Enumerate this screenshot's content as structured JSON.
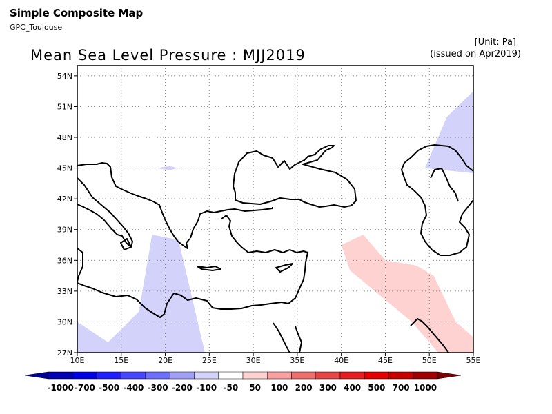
{
  "header": {
    "title": "Simple Composite Map",
    "subtitle": "GPC_Toulouse",
    "unit": "[Unit: Pa]",
    "issued": "(issued on Apr2019)"
  },
  "map": {
    "title": "Mean Sea Level Pressure : MJJ2019",
    "lon_range": [
      10,
      55
    ],
    "lat_range": [
      27,
      55
    ],
    "x_ticks": [
      "10E",
      "15E",
      "20E",
      "25E",
      "30E",
      "35E",
      "40E",
      "45E",
      "50E",
      "55E"
    ],
    "y_ticks": [
      "27N",
      "30N",
      "33N",
      "36N",
      "39N",
      "42N",
      "45N",
      "48N",
      "51N",
      "54N"
    ],
    "grid": true
  },
  "colorbar": {
    "labels": [
      "-1000",
      "-700",
      "-500",
      "-400",
      "-300",
      "-200",
      "-100",
      "-50",
      "50",
      "100",
      "200",
      "300",
      "400",
      "500",
      "700",
      "1000"
    ],
    "colors": [
      "#0000b4",
      "#0000e6",
      "#1e1eff",
      "#4646ff",
      "#6e6eff",
      "#a0a0f8",
      "#d2d2fa",
      "#ffffff",
      "#ffd2d2",
      "#faa0a0",
      "#f06e6e",
      "#e64646",
      "#e61e1e",
      "#e60000",
      "#c80000",
      "#a00000"
    ],
    "min_arrow": "#000096",
    "max_arrow": "#780000"
  },
  "chart_data": {
    "type": "heatmap",
    "title": "Mean Sea Level Pressure : MJJ2019",
    "unit": "Pa",
    "xlabel": "",
    "ylabel": "",
    "anomaly_regions": [
      {
        "category": "-100 to -50",
        "color": "#d2d2fa",
        "lon": [
          10.0,
          13.5,
          17.0,
          18.5,
          21.5,
          24.5,
          24.5,
          10.0
        ],
        "lat": [
          30.0,
          28.0,
          31.0,
          38.5,
          38.0,
          27.0,
          27.0,
          27.0
        ]
      },
      {
        "category": "-100 to -50",
        "color": "#d2d2fa",
        "lon": [
          49.5,
          52.0,
          55.0,
          55.0,
          49.5
        ],
        "lat": [
          45.0,
          50.0,
          52.5,
          44.5,
          45.0
        ]
      },
      {
        "category": "-100 to -50",
        "color": "#d2d2fa",
        "lon": [
          19.0,
          20.5,
          21.5,
          20.5,
          19.0
        ],
        "lat": [
          45.0,
          45.2,
          45.0,
          44.8,
          45.0
        ]
      },
      {
        "category": "50 to 100",
        "color": "#ffd2d2",
        "lon": [
          40.0,
          42.5,
          45.0,
          48.5,
          50.5,
          53.0,
          55.0,
          55.0,
          51.0,
          48.0,
          44.5,
          41.0,
          40.0
        ],
        "lat": [
          37.5,
          38.5,
          36.0,
          35.5,
          34.5,
          30.0,
          28.5,
          27.0,
          27.0,
          30.0,
          32.5,
          35.0,
          37.5
        ]
      }
    ]
  }
}
